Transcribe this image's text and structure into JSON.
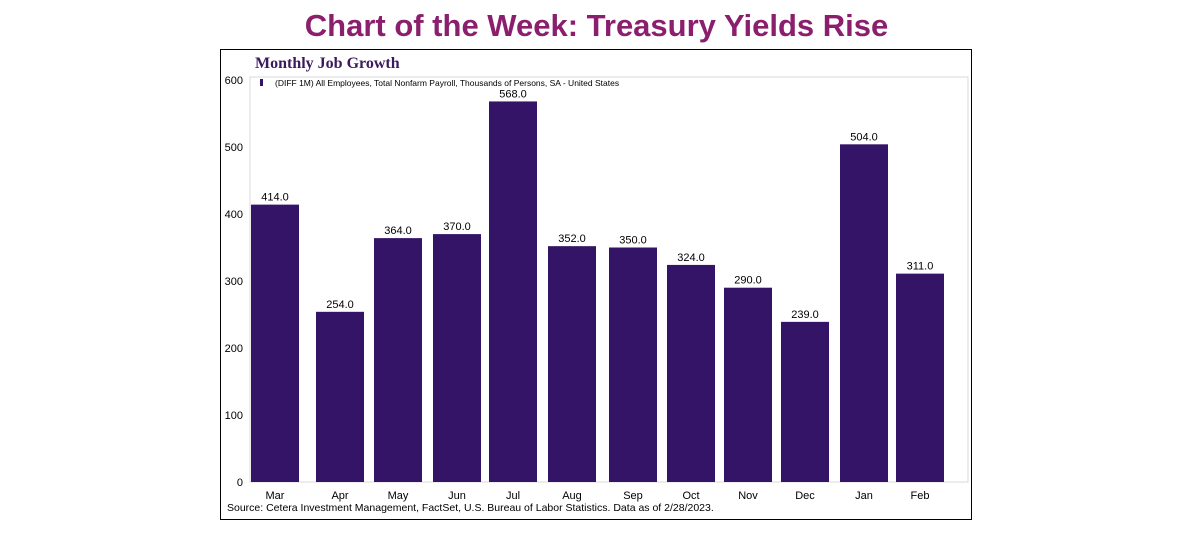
{
  "page": {
    "title": "Chart of the Week: Treasury Yields Rise"
  },
  "colors": {
    "title": "#8B1F6E",
    "bar": "#331466",
    "chart_title": "#3a1a5c"
  },
  "chart_data": {
    "type": "bar",
    "title": "Monthly Job Growth",
    "categories": [
      "Mar",
      "Apr",
      "May",
      "Jun",
      "Jul",
      "Aug",
      "Sep",
      "Oct",
      "Nov",
      "Dec",
      "Jan",
      "Feb"
    ],
    "series": [
      {
        "name": "(DIFF 1M) All Employees, Total Nonfarm Payroll, Thousands of Persons, SA - United States",
        "values": [
          414.0,
          254.0,
          364.0,
          370.0,
          568.0,
          352.0,
          350.0,
          324.0,
          290.0,
          239.0,
          504.0,
          311.0
        ],
        "labels": [
          "414.0",
          "254.0",
          "364.0",
          "370.0",
          "568.0",
          "352.0",
          "350.0",
          "324.0",
          "290.0",
          "239.0",
          "504.0",
          "311.0"
        ]
      }
    ],
    "ylim": [
      0,
      600
    ],
    "yticks": [
      0,
      100,
      200,
      300,
      400,
      500,
      600
    ],
    "grid": false,
    "legend_position": "top-left",
    "source": "Source: Cetera Investment Management, FactSet, U.S. Bureau of Labor Statistics. Data as of 2/28/2023."
  }
}
